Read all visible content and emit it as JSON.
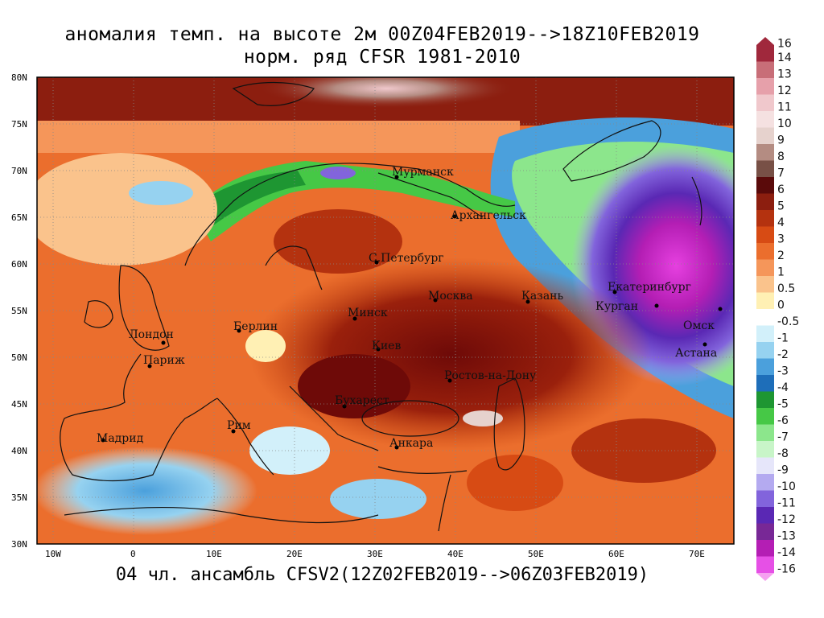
{
  "title_line1": "аномалия темп. на высоте 2м 00Z04FEB2019-->18Z10FEB2019",
  "title_line2": "норм. ряд CFSR 1981-2010",
  "footer": "04 чл. ансамбль CFSV2(12Z02FEB2019-->06Z03FEB2019)",
  "lat_labels": [
    "80N",
    "75N",
    "70N",
    "65N",
    "60N",
    "55N",
    "50N",
    "45N",
    "40N",
    "35N",
    "30N"
  ],
  "lon_labels": [
    "10W",
    "0",
    "10E",
    "20E",
    "30E",
    "40E",
    "50E",
    "60E",
    "70E"
  ],
  "cities": [
    {
      "name": "Мурманск"
    },
    {
      "name": "Архангельск"
    },
    {
      "name": "С.Петербург"
    },
    {
      "name": "Москва"
    },
    {
      "name": "Казань"
    },
    {
      "name": "Екатеринбург"
    },
    {
      "name": "Курган"
    },
    {
      "name": "Омск"
    },
    {
      "name": "Астана"
    },
    {
      "name": "Минск"
    },
    {
      "name": "Берлин"
    },
    {
      "name": "Лондон"
    },
    {
      "name": "Париж"
    },
    {
      "name": "Киев"
    },
    {
      "name": "Ростов-на-Дону"
    },
    {
      "name": "Бухарест"
    },
    {
      "name": "Рим"
    },
    {
      "name": "Мадрид"
    },
    {
      "name": "Анкара"
    }
  ],
  "colorbar": {
    "labels": [
      "16",
      "14",
      "13",
      "12",
      "11",
      "10",
      "9",
      "8",
      "7",
      "6",
      "5",
      "4",
      "3",
      "2",
      "1",
      "0.5",
      "0",
      "-0.5",
      "-1",
      "-2",
      "-3",
      "-4",
      "-5",
      "-6",
      "-7",
      "-8",
      "-9",
      "-10",
      "-11",
      "-12",
      "-13",
      "-14",
      "-16"
    ],
    "colors": [
      "#a0283c",
      "#c86e78",
      "#e6a0aa",
      "#f0c8cc",
      "#f5e1e1",
      "#e6d2cd",
      "#b48c82",
      "#785046",
      "#5a0a0a",
      "#8c1e0f",
      "#b4320f",
      "#d74b14",
      "#eb6e2d",
      "#f5965a",
      "#fac38c",
      "#fff0b4",
      "#ffffff",
      "#d2f0fa",
      "#96d2f0",
      "#4ba0dc",
      "#1e6eb9",
      "#1e9632",
      "#46c846",
      "#8ce68c",
      "#c8f5c8",
      "#e6e6fa",
      "#b4aaf0",
      "#8264dc",
      "#5a28b4",
      "#782896",
      "#b41eb4",
      "#e650e6",
      "#f5a0f0"
    ]
  },
  "fields": {
    "units_note": ""
  }
}
